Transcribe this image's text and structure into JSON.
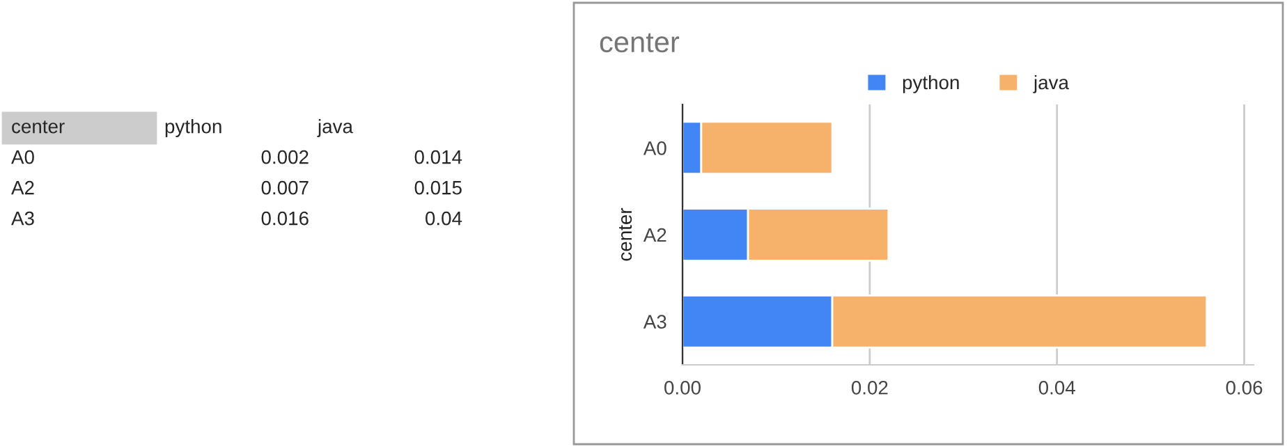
{
  "chart_data": [
    {
      "type": "other",
      "annotations": [
        "center",
        "python",
        "java",
        "A0",
        "0.002",
        "0.014",
        "A2",
        "0.007",
        "0.015",
        "A3",
        "0.016",
        "0.04"
      ]
    },
    {
      "type": "bar",
      "orientation": "horizontal",
      "stacked": true,
      "title": "center",
      "ylabel": "center",
      "categories": [
        "A0",
        "A2",
        "A3"
      ],
      "series": [
        {
          "name": "python",
          "color": "#4285f4",
          "values": [
            0.002,
            0.007,
            0.016
          ]
        },
        {
          "name": "java",
          "color": "#f6b26b",
          "values": [
            0.014,
            0.015,
            0.04
          ]
        }
      ],
      "xlim": [
        0,
        0.061
      ],
      "xticks": [
        {
          "value": 0,
          "label": "0.00"
        },
        {
          "value": 0.02,
          "label": "0.02"
        },
        {
          "value": 0.04,
          "label": "0.04"
        },
        {
          "value": 0.06,
          "label": "0.06"
        }
      ],
      "grid": "x",
      "legend": "top"
    }
  ]
}
